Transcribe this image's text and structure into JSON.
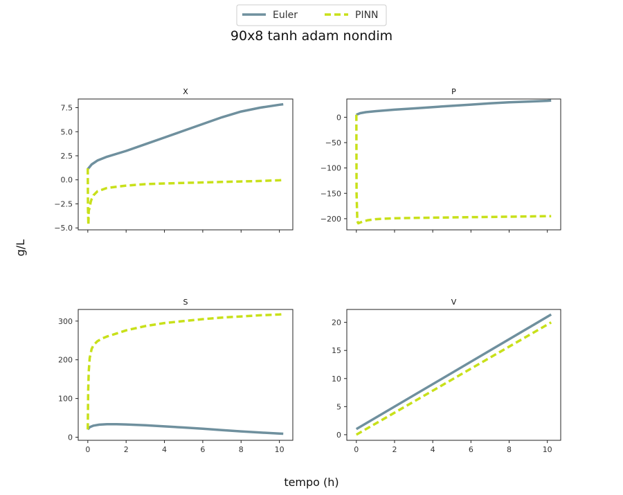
{
  "figure": {
    "title": "90x8 tanh adam nondim",
    "xlabel": "tempo (h)",
    "ylabel": "g/L"
  },
  "legend": {
    "placement": "top-center",
    "entries": [
      {
        "name": "Euler",
        "color": "#6f909e",
        "style": "solid"
      },
      {
        "name": "PINN",
        "color": "#c8e01a",
        "style": "dashed"
      }
    ]
  },
  "colors": {
    "euler": "#6f909e",
    "pinn": "#c8e01a"
  },
  "chart_data": [
    {
      "type": "line",
      "title": "X",
      "xlim": [
        -0.5,
        10.7
      ],
      "ylim": [
        -5.2,
        8.4
      ],
      "xticks": [
        0,
        2,
        4,
        6,
        8,
        10
      ],
      "xtick_labels_visible": false,
      "yticks": [
        -5.0,
        -2.5,
        0.0,
        2.5,
        5.0,
        7.5
      ],
      "ytick_labels": [
        "−5.0",
        "−2.5",
        "0.0",
        "2.5",
        "5.0",
        "7.5"
      ],
      "series": [
        {
          "name": "Euler",
          "x": [
            0,
            0.2,
            0.5,
            1,
            2,
            3,
            4,
            5,
            6,
            7,
            8,
            9,
            10,
            10.2
          ],
          "y": [
            1.1,
            1.6,
            2.0,
            2.4,
            3.0,
            3.7,
            4.4,
            5.1,
            5.8,
            6.5,
            7.1,
            7.5,
            7.8,
            7.85
          ]
        },
        {
          "name": "PINN",
          "x": [
            0,
            0.01,
            0.03,
            0.05,
            0.1,
            0.15,
            0.2,
            0.3,
            0.5,
            1,
            2,
            3,
            4,
            5,
            6,
            7,
            8,
            9,
            10,
            10.2
          ],
          "y": [
            1.2,
            -3.0,
            -4.7,
            -3.2,
            -2.9,
            -2.3,
            -2.0,
            -1.6,
            -1.2,
            -0.85,
            -0.6,
            -0.45,
            -0.38,
            -0.32,
            -0.27,
            -0.22,
            -0.17,
            -0.12,
            -0.05,
            -0.02
          ]
        }
      ]
    },
    {
      "type": "line",
      "title": "P",
      "xlim": [
        -0.5,
        10.7
      ],
      "ylim": [
        -222,
        36
      ],
      "xticks": [
        0,
        2,
        4,
        6,
        8,
        10
      ],
      "xtick_labels_visible": false,
      "yticks": [
        0,
        -50,
        -100,
        -150,
        -200
      ],
      "ytick_labels": [
        "0",
        "−50",
        "−100",
        "−150",
        "−200"
      ],
      "series": [
        {
          "name": "Euler",
          "x": [
            0,
            0.2,
            0.5,
            1,
            2,
            3,
            4,
            5,
            6,
            7,
            8,
            9,
            10,
            10.2
          ],
          "y": [
            5,
            8,
            10,
            12,
            15,
            17.5,
            20,
            22.5,
            25,
            27.5,
            29.5,
            31,
            32.5,
            33
          ]
        },
        {
          "name": "PINN",
          "x": [
            0,
            0.01,
            0.05,
            0.1,
            0.3,
            0.6,
            1,
            2,
            4,
            6,
            8,
            10,
            10.2
          ],
          "y": [
            5,
            -150,
            -205,
            -209,
            -206,
            -203,
            -201,
            -199,
            -198,
            -197,
            -196,
            -195,
            -195
          ]
        }
      ]
    },
    {
      "type": "line",
      "title": "S",
      "xlim": [
        -0.5,
        10.7
      ],
      "ylim": [
        -8,
        330
      ],
      "xticks": [
        0,
        2,
        4,
        6,
        8,
        10
      ],
      "xtick_labels": [
        "0",
        "2",
        "4",
        "6",
        "8",
        "10"
      ],
      "yticks": [
        0,
        100,
        200,
        300
      ],
      "ytick_labels": [
        "0",
        "100",
        "200",
        "300"
      ],
      "series": [
        {
          "name": "Euler",
          "x": [
            0,
            0.1,
            0.3,
            0.6,
            1,
            1.5,
            2,
            3,
            4,
            5,
            6,
            7,
            8,
            9,
            10,
            10.2
          ],
          "y": [
            20,
            26,
            30,
            32.5,
            33.5,
            33.5,
            33,
            31,
            28,
            25,
            22,
            18.5,
            15,
            12,
            9.5,
            9
          ]
        },
        {
          "name": "PINN",
          "x": [
            0,
            0.02,
            0.05,
            0.1,
            0.2,
            0.3,
            0.5,
            0.75,
            1,
            1.5,
            2,
            3,
            4,
            5,
            6,
            7,
            8,
            9,
            10,
            10.2
          ],
          "y": [
            20,
            120,
            170,
            205,
            228,
            238,
            248,
            255,
            260,
            268,
            276,
            287,
            295,
            300,
            305,
            309,
            312,
            315,
            317,
            318
          ]
        }
      ]
    },
    {
      "type": "line",
      "title": "V",
      "xlim": [
        -0.5,
        10.7
      ],
      "ylim": [
        -1,
        22.3
      ],
      "xticks": [
        0,
        2,
        4,
        6,
        8,
        10
      ],
      "xtick_labels": [
        "0",
        "2",
        "4",
        "6",
        "8",
        "10"
      ],
      "yticks": [
        0,
        5,
        10,
        15,
        20
      ],
      "ytick_labels": [
        "0",
        "5",
        "10",
        "15",
        "20"
      ],
      "series": [
        {
          "name": "Euler",
          "x": [
            0,
            10.2
          ],
          "y": [
            1.0,
            21.4
          ]
        },
        {
          "name": "PINN",
          "x": [
            0,
            10.2
          ],
          "y": [
            0.0,
            20.0
          ]
        }
      ]
    }
  ]
}
